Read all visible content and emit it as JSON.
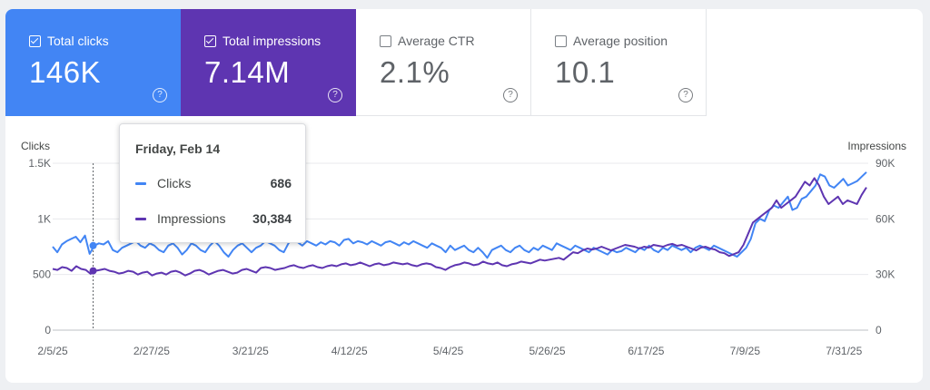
{
  "metrics": [
    {
      "label": "Total clicks",
      "value": "146K",
      "selected": true,
      "color": "#4285f4"
    },
    {
      "label": "Total impressions",
      "value": "7.14M",
      "selected": true,
      "color": "#5e35b1"
    },
    {
      "label": "Average CTR",
      "value": "2.1%",
      "selected": false,
      "color": "#ffffff"
    },
    {
      "label": "Average position",
      "value": "10.1",
      "selected": false,
      "color": "#ffffff"
    }
  ],
  "help_glyph": "?",
  "tooltip": {
    "date": "Friday, Feb 14",
    "rows": [
      {
        "label": "Clicks",
        "value": "686",
        "color": "#4285f4"
      },
      {
        "label": "Impressions",
        "value": "30,384",
        "color": "#5e35b1"
      }
    ]
  },
  "chart_data": {
    "type": "line",
    "left_axis_title": "Clicks",
    "right_axis_title": "Impressions",
    "left_ticks": [
      "0",
      "500",
      "1K",
      "1.5K"
    ],
    "left_ylim": [
      0,
      1500
    ],
    "right_ticks": [
      "0",
      "30K",
      "60K",
      "90K"
    ],
    "right_ylim": [
      0,
      90000
    ],
    "x_tick_labels": [
      "2/5/25",
      "2/27/25",
      "3/21/25",
      "4/12/25",
      "5/4/25",
      "5/26/25",
      "6/17/25",
      "7/9/25",
      "7/31/25"
    ],
    "x_range": [
      "2025-02-05",
      "2025-08-05"
    ],
    "hover_date": "2025-02-14",
    "gridlines": true,
    "series": [
      {
        "name": "Clicks",
        "axis": "left",
        "color": "#4285f4",
        "values": [
          750,
          700,
          770,
          800,
          820,
          840,
          790,
          850,
          686,
          760,
          780,
          770,
          800,
          720,
          700,
          740,
          760,
          780,
          800,
          760,
          740,
          780,
          760,
          720,
          700,
          760,
          780,
          740,
          680,
          720,
          780,
          760,
          720,
          700,
          760,
          800,
          760,
          700,
          660,
          720,
          760,
          780,
          740,
          700,
          740,
          760,
          800,
          780,
          760,
          720,
          700,
          780,
          820,
          790,
          760,
          800,
          780,
          760,
          790,
          770,
          800,
          790,
          760,
          810,
          820,
          780,
          800,
          790,
          770,
          800,
          780,
          760,
          790,
          800,
          780,
          760,
          790,
          770,
          800,
          780,
          760,
          740,
          780,
          760,
          740,
          700,
          760,
          720,
          740,
          760,
          720,
          700,
          740,
          700,
          650,
          720,
          740,
          760,
          720,
          700,
          740,
          760,
          720,
          700,
          740,
          720,
          760,
          740,
          720,
          780,
          760,
          740,
          720,
          760,
          740,
          720,
          700,
          740,
          720,
          700,
          680,
          720,
          700,
          710,
          740,
          720,
          700,
          740,
          720,
          760,
          720,
          700,
          740,
          720,
          760,
          740,
          720,
          740,
          700,
          740,
          760,
          740,
          720,
          760,
          740,
          720,
          700,
          680,
          660,
          700,
          740,
          820,
          960,
          1000,
          980,
          1080,
          1120,
          1100,
          1150,
          1200,
          1080,
          1100,
          1180,
          1200,
          1250,
          1300,
          1400,
          1380,
          1300,
          1280,
          1320,
          1360,
          1300,
          1320,
          1340,
          1380,
          1420
        ]
      },
      {
        "name": "Impressions",
        "axis": "right",
        "color": "#5e35b1",
        "values": [
          33000,
          32500,
          34000,
          33500,
          32000,
          34500,
          33000,
          32500,
          30384,
          32000,
          32500,
          33000,
          32000,
          31500,
          30500,
          31000,
          32000,
          31500,
          30000,
          31000,
          31500,
          29500,
          30500,
          31000,
          30000,
          31500,
          32000,
          31000,
          29500,
          30500,
          32000,
          32500,
          31500,
          30000,
          31000,
          32000,
          32500,
          31500,
          30500,
          31000,
          32500,
          33000,
          32000,
          31000,
          33500,
          34000,
          33500,
          32500,
          33000,
          33500,
          34500,
          35000,
          34000,
          33500,
          34500,
          35000,
          34000,
          33500,
          34500,
          35000,
          34500,
          35500,
          36000,
          35000,
          35500,
          36500,
          35500,
          34500,
          35500,
          36000,
          35000,
          35500,
          36500,
          36000,
          35500,
          36000,
          35000,
          34500,
          35500,
          36000,
          35500,
          34000,
          33500,
          32500,
          34000,
          35000,
          35500,
          36500,
          36000,
          35000,
          35500,
          37000,
          36000,
          35500,
          36500,
          35000,
          34500,
          35500,
          36000,
          37000,
          36500,
          36000,
          37000,
          38000,
          37500,
          38000,
          38500,
          39000,
          38000,
          40000,
          42000,
          41500,
          43000,
          44000,
          43500,
          44000,
          45000,
          44000,
          43000,
          44000,
          45000,
          46000,
          45500,
          45000,
          44000,
          45000,
          44500,
          46000,
          45500,
          45000,
          46000,
          46500,
          45500,
          46000,
          45000,
          44000,
          43000,
          44500,
          45000,
          44000,
          43500,
          42000,
          41500,
          40000,
          41000,
          42000,
          46000,
          52000,
          58000,
          60000,
          62000,
          64000,
          66000,
          70000,
          66000,
          68000,
          70000,
          72000,
          76000,
          80000,
          78000,
          82000,
          78000,
          72000,
          68000,
          70000,
          72000,
          68000,
          70000,
          69000,
          68000,
          73000,
          77000
        ]
      }
    ]
  }
}
